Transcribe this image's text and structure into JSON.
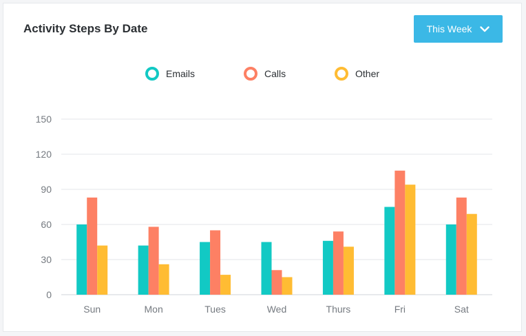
{
  "card": {
    "title": "Activity Steps By Date"
  },
  "filter": {
    "label": "This Week",
    "icon": "chevron-down-icon"
  },
  "colors": {
    "accent": "#3bb8e6",
    "Emails": "#12c9c4",
    "Calls": "#fd8064",
    "Other": "#ffbc33"
  },
  "chart_data": {
    "type": "bar",
    "title": "Activity Steps By Date",
    "categories": [
      "Sun",
      "Mon",
      "Tues",
      "Wed",
      "Thurs",
      "Fri",
      "Sat"
    ],
    "series": [
      {
        "name": "Emails",
        "values": [
          60,
          42,
          45,
          45,
          46,
          75,
          60
        ]
      },
      {
        "name": "Calls",
        "values": [
          83,
          58,
          55,
          21,
          54,
          106,
          83
        ]
      },
      {
        "name": "Other",
        "values": [
          42,
          26,
          17,
          15,
          41,
          94,
          69
        ]
      }
    ],
    "yticks": [
      0,
      30,
      60,
      90,
      120,
      150
    ],
    "ylim": [
      0,
      150
    ],
    "xlabel": "",
    "ylabel": "",
    "grid": true,
    "legend_position": "top-center"
  }
}
